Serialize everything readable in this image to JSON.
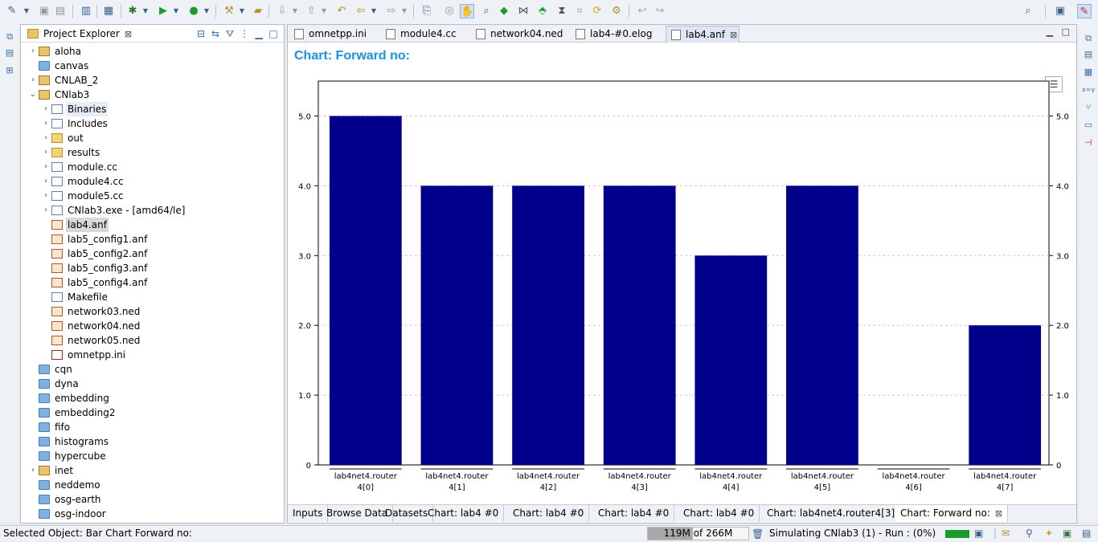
{
  "project_explorer": {
    "title": "Project Explorer",
    "items": [
      {
        "label": "aloha",
        "level": 0,
        "arrow": "right",
        "icon": "project"
      },
      {
        "label": "canvas",
        "level": 0,
        "arrow": "",
        "icon": "folder"
      },
      {
        "label": "CNLAB_2",
        "level": 0,
        "arrow": "right",
        "icon": "project"
      },
      {
        "label": "CNlab3",
        "level": 0,
        "arrow": "down",
        "icon": "project"
      },
      {
        "label": "Binaries",
        "level": 1,
        "arrow": "right",
        "icon": "binaries",
        "highlight": true
      },
      {
        "label": "Includes",
        "level": 1,
        "arrow": "right",
        "icon": "includes"
      },
      {
        "label": "out",
        "level": 1,
        "arrow": "right",
        "icon": "yfolder"
      },
      {
        "label": "results",
        "level": 1,
        "arrow": "right",
        "icon": "yfolder"
      },
      {
        "label": "module.cc",
        "level": 1,
        "arrow": "right",
        "icon": "c-file"
      },
      {
        "label": "module4.cc",
        "level": 1,
        "arrow": "right",
        "icon": "c-file"
      },
      {
        "label": "module5.cc",
        "level": 1,
        "arrow": "right",
        "icon": "c-file"
      },
      {
        "label": "CNlab3.exe - [amd64/le]",
        "level": 1,
        "arrow": "right",
        "icon": "exe"
      },
      {
        "label": "lab4.anf",
        "level": 1,
        "arrow": "",
        "icon": "anf",
        "selected": true
      },
      {
        "label": "lab5_config1.anf",
        "level": 1,
        "arrow": "",
        "icon": "anf"
      },
      {
        "label": "lab5_config2.anf",
        "level": 1,
        "arrow": "",
        "icon": "anf"
      },
      {
        "label": "lab5_config3.anf",
        "level": 1,
        "arrow": "",
        "icon": "anf"
      },
      {
        "label": "lab5_config4.anf",
        "level": 1,
        "arrow": "",
        "icon": "anf"
      },
      {
        "label": "Makefile",
        "level": 1,
        "arrow": "",
        "icon": "makefile"
      },
      {
        "label": "network03.ned",
        "level": 1,
        "arrow": "",
        "icon": "ned"
      },
      {
        "label": "network04.ned",
        "level": 1,
        "arrow": "",
        "icon": "ned"
      },
      {
        "label": "network05.ned",
        "level": 1,
        "arrow": "",
        "icon": "ned"
      },
      {
        "label": "omnetpp.ini",
        "level": 1,
        "arrow": "",
        "icon": "ini"
      },
      {
        "label": "cqn",
        "level": 0,
        "arrow": "",
        "icon": "folder"
      },
      {
        "label": "dyna",
        "level": 0,
        "arrow": "",
        "icon": "folder"
      },
      {
        "label": "embedding",
        "level": 0,
        "arrow": "",
        "icon": "folder"
      },
      {
        "label": "embedding2",
        "level": 0,
        "arrow": "",
        "icon": "folder"
      },
      {
        "label": "fifo",
        "level": 0,
        "arrow": "",
        "icon": "folder"
      },
      {
        "label": "histograms",
        "level": 0,
        "arrow": "",
        "icon": "folder"
      },
      {
        "label": "hypercube",
        "level": 0,
        "arrow": "",
        "icon": "folder"
      },
      {
        "label": "inet",
        "level": 0,
        "arrow": "right",
        "icon": "project"
      },
      {
        "label": "neddemo",
        "level": 0,
        "arrow": "",
        "icon": "folder"
      },
      {
        "label": "osg-earth",
        "level": 0,
        "arrow": "",
        "icon": "folder"
      },
      {
        "label": "osg-indoor",
        "level": 0,
        "arrow": "",
        "icon": "folder"
      }
    ]
  },
  "editor_tabs": [
    {
      "label": "omnetpp.ini",
      "active": false
    },
    {
      "label": "module4.cc",
      "active": false
    },
    {
      "label": "network04.ned",
      "active": false
    },
    {
      "label": "lab4-#0.elog",
      "active": false
    },
    {
      "label": "lab4.anf",
      "active": true
    }
  ],
  "chart_title": "Chart: Forward no:",
  "chart_data": {
    "type": "bar",
    "categories": [
      "lab4net4.router 4[0]",
      "lab4net4.router 4[1]",
      "lab4net4.router 4[2]",
      "lab4net4.router 4[3]",
      "lab4net4.router 4[4]",
      "lab4net4.router 4[5]",
      "lab4net4.router 4[6]",
      "lab4net4.router 4[7]"
    ],
    "category_lines": [
      [
        "lab4net4.router",
        "4[0]"
      ],
      [
        "lab4net4.router",
        "4[1]"
      ],
      [
        "lab4net4.router",
        "4[2]"
      ],
      [
        "lab4net4.router",
        "4[3]"
      ],
      [
        "lab4net4.router",
        "4[4]"
      ],
      [
        "lab4net4.router",
        "4[5]"
      ],
      [
        "lab4net4.router",
        "4[6]"
      ],
      [
        "lab4net4.router",
        "4[7]"
      ]
    ],
    "values": [
      5,
      4,
      4,
      4,
      3,
      4,
      0,
      2
    ],
    "ylim": [
      0,
      5.5
    ],
    "yticks": [
      0,
      1.0,
      2.0,
      3.0,
      4.0,
      5.0
    ],
    "ytick_labels": [
      "0",
      "1.0",
      "2.0",
      "3.0",
      "4.0",
      "5.0"
    ],
    "bar_color": "#00008b",
    "grid": true
  },
  "bottom_tabs": [
    {
      "label": "Inputs",
      "active": false
    },
    {
      "label": "Browse Data",
      "active": false
    },
    {
      "label": "Datasets",
      "active": false
    },
    {
      "label": "Chart: lab4  #0",
      "active": false
    },
    {
      "label": "Chart: lab4  #0",
      "active": false
    },
    {
      "label": "Chart: lab4  #0",
      "active": false
    },
    {
      "label": "Chart: lab4  #0",
      "active": false
    },
    {
      "label": "Chart: lab4net4.router4[3]",
      "active": false
    },
    {
      "label": "Chart: Forward no:",
      "active": true
    }
  ],
  "status": {
    "selected_object": "Selected Object: Bar Chart Forward no:",
    "heap": "119M of 266M",
    "heap_used_fraction": 0.447,
    "job": "Simulating CNlab3 (1) - Run : (0%)"
  }
}
